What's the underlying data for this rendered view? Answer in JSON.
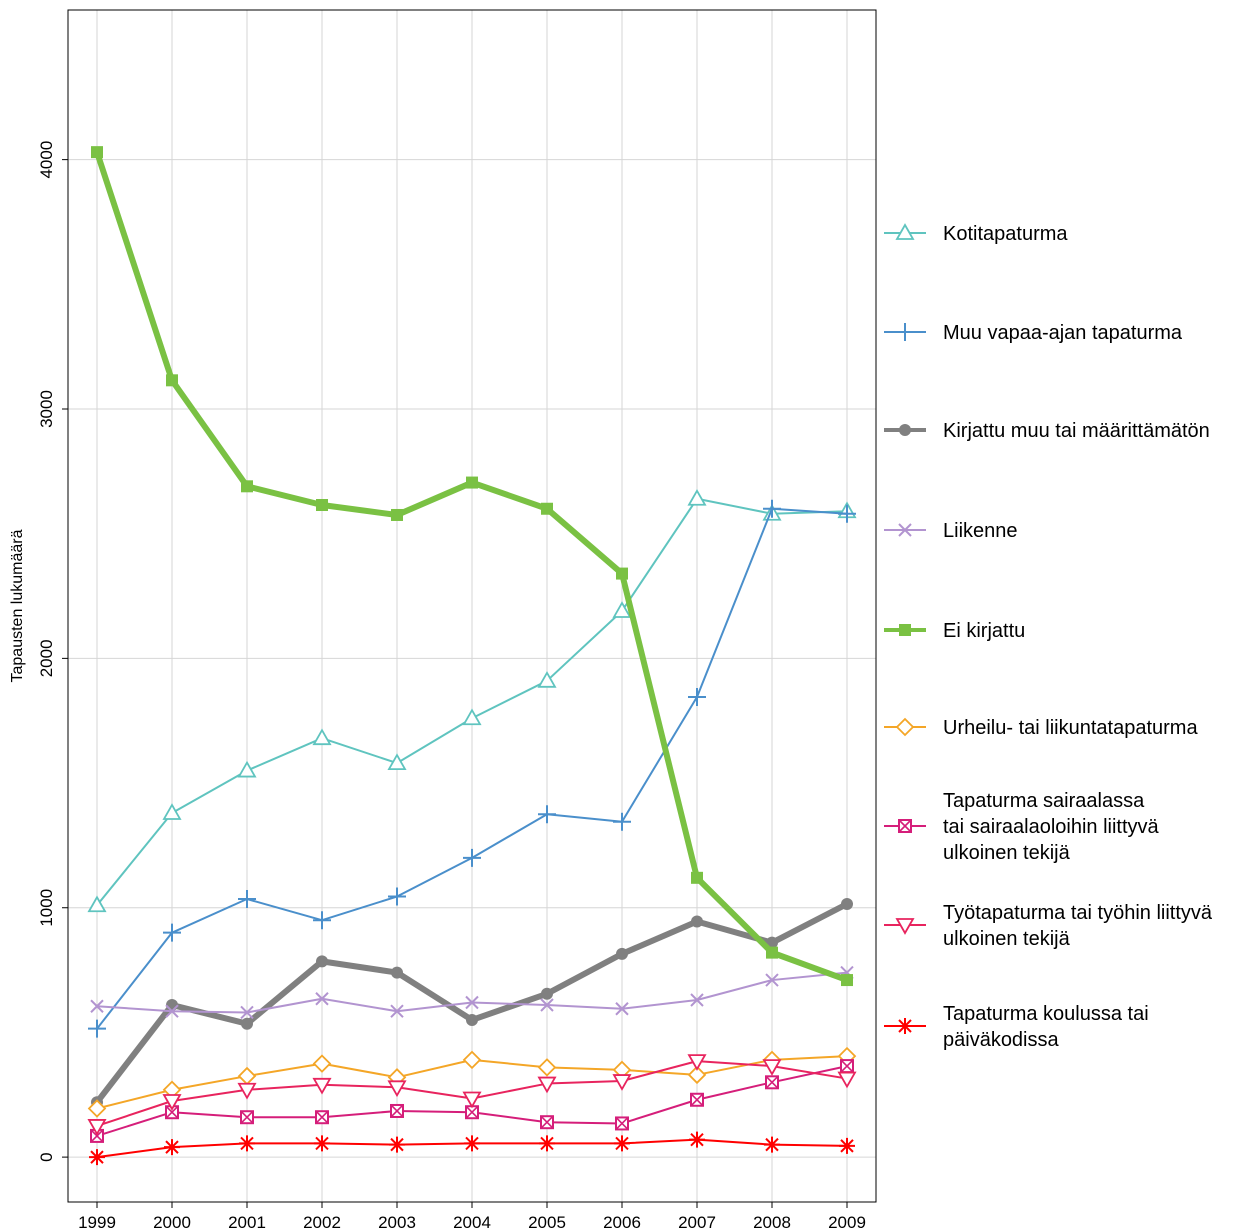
{
  "chart_data": {
    "type": "line",
    "title": "",
    "xlabel": "",
    "ylabel": "Tapausten lukumäärä",
    "x": [
      "1999",
      "2000",
      "2001",
      "2002",
      "2003",
      "2004",
      "2005",
      "2006",
      "2007",
      "2008",
      "2009"
    ],
    "ylim": [
      -180,
      4600
    ],
    "yticks": [
      0,
      1000,
      2000,
      3000,
      4000
    ],
    "grid": true,
    "legend_position": "right",
    "series": [
      {
        "name": "Kotitapaturma",
        "color": "#5fc4bf",
        "marker": "triangle-up",
        "width": 2,
        "values": [
          1010,
          1380,
          1550,
          1680,
          1580,
          1760,
          1910,
          2190,
          2640,
          2580,
          2590
        ]
      },
      {
        "name": "Muu vapaa-ajan tapaturma",
        "color": "#4a8fcb",
        "marker": "plus",
        "width": 2,
        "values": [
          515,
          900,
          1035,
          950,
          1045,
          1200,
          1375,
          1345,
          1845,
          2600,
          2580
        ]
      },
      {
        "name": "Kirjattu muu tai määrittämätön",
        "color": "#808080",
        "marker": "circle",
        "width": 6,
        "values": [
          220,
          610,
          535,
          785,
          740,
          550,
          655,
          815,
          945,
          860,
          1015
        ]
      },
      {
        "name": "Liikenne",
        "color": "#b294d0",
        "marker": "x",
        "width": 2,
        "values": [
          605,
          585,
          580,
          635,
          585,
          620,
          610,
          595,
          630,
          710,
          740
        ]
      },
      {
        "name": "Ei kirjattu",
        "color": "#7ac143",
        "marker": "square",
        "width": 6,
        "values": [
          4030,
          3115,
          2690,
          2615,
          2575,
          2705,
          2600,
          2340,
          1120,
          820,
          710
        ]
      },
      {
        "name": "Urheilu- tai liikuntatapaturma",
        "color": "#f4a627",
        "marker": "diamond",
        "width": 2,
        "values": [
          195,
          270,
          325,
          375,
          320,
          390,
          360,
          350,
          330,
          390,
          405
        ]
      },
      {
        "name": "Tapaturma sairaalassa tai sairaalaoloihin liittyvä ulkoinen tekijä",
        "color": "#d51e7a",
        "marker": "boxed-x",
        "width": 2,
        "values": [
          85,
          180,
          160,
          160,
          185,
          180,
          140,
          135,
          230,
          300,
          365
        ]
      },
      {
        "name": "Työtapaturma tai työhin liittyvä ulkoinen tekijä",
        "color": "#e8245e",
        "marker": "triangle-down",
        "width": 2,
        "values": [
          125,
          225,
          270,
          290,
          280,
          235,
          295,
          305,
          385,
          365,
          315
        ]
      },
      {
        "name": "Tapaturma koulussa tai päiväkodissa",
        "color": "#ff0000",
        "marker": "asterisk",
        "width": 2,
        "values": [
          0,
          40,
          55,
          55,
          50,
          55,
          55,
          55,
          70,
          50,
          45
        ]
      }
    ]
  },
  "legend": [
    {
      "lines": [
        "Kotitapaturma"
      ]
    },
    {
      "lines": [
        "Muu vapaa-ajan tapaturma"
      ]
    },
    {
      "lines": [
        "Kirjattu muu tai määrittämätön"
      ]
    },
    {
      "lines": [
        "Liikenne"
      ]
    },
    {
      "lines": [
        "Ei kirjattu"
      ]
    },
    {
      "lines": [
        "Urheilu- tai liikuntatapaturma"
      ]
    },
    {
      "lines": [
        "Tapaturma sairaalassa",
        "tai sairaalaoloihin liittyvä",
        "ulkoinen tekijä"
      ]
    },
    {
      "lines": [
        "Työtapaturma tai työhin liittyvä",
        "ulkoinen tekijä"
      ]
    },
    {
      "lines": [
        "Tapaturma koulussa tai",
        "päiväkodissa"
      ]
    }
  ]
}
